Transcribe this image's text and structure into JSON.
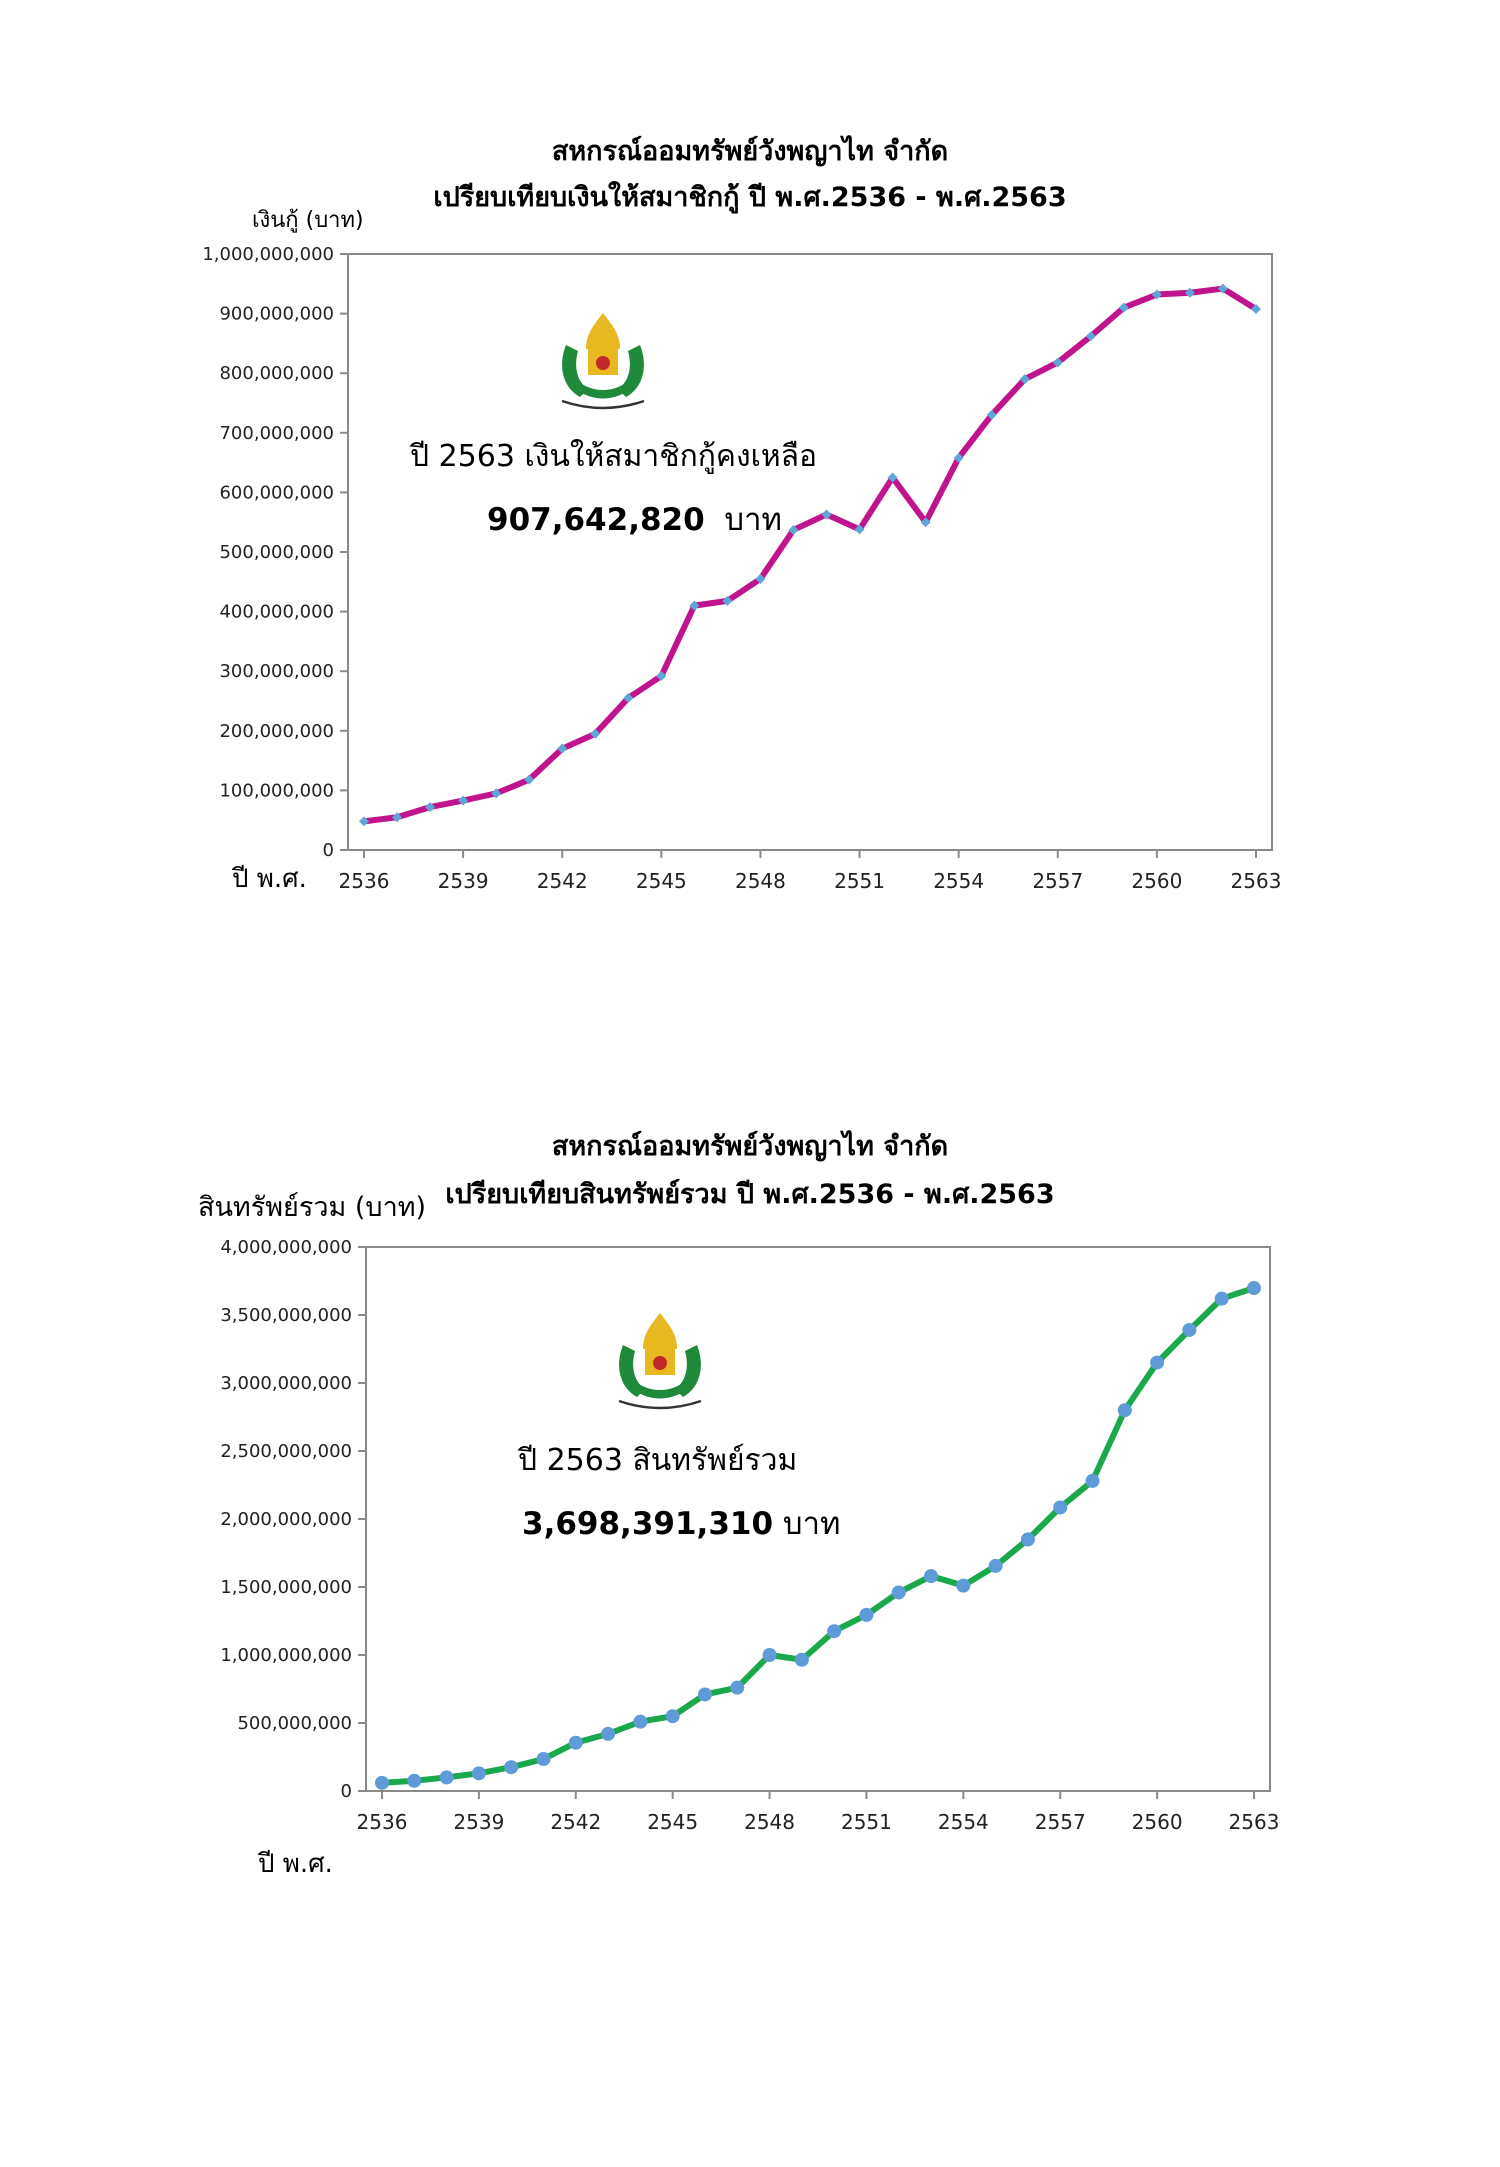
{
  "chart_data": [
    {
      "type": "line",
      "title": "สหกรณ์ออมทรัพย์วังพญาไท จำกัด",
      "subtitle": "เปรียบเทียบเงินให้สมาชิกกู้ ปี พ.ศ.2536 - พ.ศ.2563",
      "ylabel": "เงินกู้ (บาท)",
      "xlabel": "ปี พ.ศ.",
      "ylim": [
        0,
        1000000000
      ],
      "yticks": [
        "0",
        "100,000,000",
        "200,000,000",
        "300,000,000",
        "400,000,000",
        "500,000,000",
        "600,000,000",
        "700,000,000",
        "800,000,000",
        "900,000,000",
        "1,000,000,000"
      ],
      "xtick_labels": [
        "2536",
        "2539",
        "2542",
        "2545",
        "2548",
        "2551",
        "2554",
        "2557",
        "2560",
        "2563"
      ],
      "x": [
        2536,
        2537,
        2538,
        2539,
        2540,
        2541,
        2542,
        2543,
        2544,
        2545,
        2546,
        2547,
        2548,
        2549,
        2550,
        2551,
        2552,
        2553,
        2554,
        2555,
        2556,
        2557,
        2558,
        2559,
        2560,
        2561,
        2562,
        2563
      ],
      "series": [
        {
          "values": [
            48000000,
            55000000,
            72000000,
            83000000,
            95000000,
            118000000,
            170000000,
            195000000,
            255000000,
            292000000,
            410000000,
            418000000,
            455000000,
            537000000,
            563000000,
            538000000,
            625000000,
            550000000,
            658000000,
            730000000,
            790000000,
            818000000,
            862000000,
            910000000,
            932000000,
            935000000,
            942000000,
            907642820
          ],
          "line_color": "#C0138E",
          "marker_color": "#5EA6D8"
        }
      ],
      "annotation": {
        "line1": "ปี 2563 เงินให้สมาชิกกู้คงเหลือ",
        "amount": "907,642,820",
        "unit": "บาท"
      }
    },
    {
      "type": "line",
      "title": "สหกรณ์ออมทรัพย์วังพญาไท จำกัด",
      "subtitle": "เปรียบเทียบสินทรัพย์รวม ปี พ.ศ.2536 - พ.ศ.2563",
      "ylabel": "สินทรัพย์รวม (บาท)",
      "xlabel": "ปี พ.ศ.",
      "ylim": [
        0,
        4000000000
      ],
      "yticks": [
        "0",
        "500,000,000",
        "1,000,000,000",
        "1,500,000,000",
        "2,000,000,000",
        "2,500,000,000",
        "3,000,000,000",
        "3,500,000,000",
        "4,000,000,000"
      ],
      "xtick_labels": [
        "2536",
        "2539",
        "2542",
        "2545",
        "2548",
        "2551",
        "2554",
        "2557",
        "2560",
        "2563"
      ],
      "x": [
        2536,
        2537,
        2538,
        2539,
        2540,
        2541,
        2542,
        2543,
        2544,
        2545,
        2546,
        2547,
        2548,
        2549,
        2550,
        2551,
        2552,
        2553,
        2554,
        2555,
        2556,
        2557,
        2558,
        2559,
        2560,
        2561,
        2562,
        2563
      ],
      "series": [
        {
          "values": [
            60000000,
            75000000,
            100000000,
            130000000,
            175000000,
            235000000,
            355000000,
            420000000,
            510000000,
            550000000,
            710000000,
            760000000,
            1000000000,
            965000000,
            1175000000,
            1295000000,
            1460000000,
            1580000000,
            1510000000,
            1655000000,
            1850000000,
            2085000000,
            2280000000,
            2800000000,
            3150000000,
            3390000000,
            3620000000,
            3698391310
          ],
          "line_color": "#1BA84A",
          "marker_color": "#5E9BD8"
        }
      ],
      "annotation": {
        "line1": "ปี 2563 สินทรัพย์รวม",
        "amount": "3,698,391,310",
        "unit": "บาท"
      }
    }
  ]
}
